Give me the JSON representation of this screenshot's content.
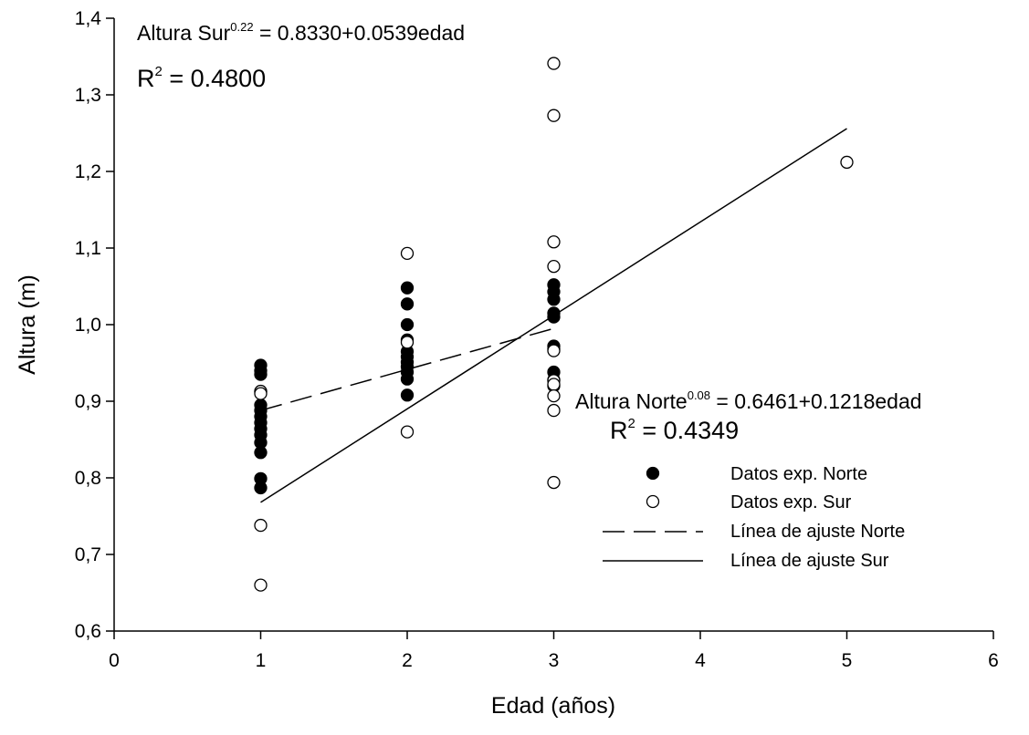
{
  "chart_data": {
    "type": "scatter",
    "xlabel": "Edad (años)",
    "ylabel": "Altura (m)",
    "xlim": [
      0,
      6
    ],
    "ylim": [
      0.6,
      1.4
    ],
    "x_ticks": [
      0,
      1,
      2,
      3,
      4,
      5,
      6
    ],
    "x_tick_labels": [
      "0",
      "1",
      "2",
      "3",
      "4",
      "5",
      "6"
    ],
    "y_ticks": [
      0.6,
      0.7,
      0.8,
      0.9,
      1.0,
      1.1,
      1.2,
      1.3,
      1.4
    ],
    "y_tick_labels": [
      "0,6",
      "0,7",
      "0,8",
      "0,9",
      "1,0",
      "1,1",
      "1,2",
      "1,3",
      "1,4"
    ],
    "grid": false,
    "legend_position": "bottom-right",
    "series": [
      {
        "name": "Datos exp. Norte",
        "kind": "points",
        "marker": "filled-circle",
        "points": [
          {
            "x": 1,
            "y": 0.947
          },
          {
            "x": 1,
            "y": 0.94
          },
          {
            "x": 1,
            "y": 0.935
          },
          {
            "x": 1,
            "y": 0.912
          },
          {
            "x": 1,
            "y": 0.895
          },
          {
            "x": 1,
            "y": 0.888
          },
          {
            "x": 1,
            "y": 0.88
          },
          {
            "x": 1,
            "y": 0.872
          },
          {
            "x": 1,
            "y": 0.864
          },
          {
            "x": 1,
            "y": 0.856
          },
          {
            "x": 1,
            "y": 0.846
          },
          {
            "x": 1,
            "y": 0.833
          },
          {
            "x": 1,
            "y": 0.799
          },
          {
            "x": 1,
            "y": 0.787
          },
          {
            "x": 2,
            "y": 1.048
          },
          {
            "x": 2,
            "y": 1.027
          },
          {
            "x": 2,
            "y": 1.0
          },
          {
            "x": 2,
            "y": 0.98
          },
          {
            "x": 2,
            "y": 0.965
          },
          {
            "x": 2,
            "y": 0.958
          },
          {
            "x": 2,
            "y": 0.951
          },
          {
            "x": 2,
            "y": 0.945
          },
          {
            "x": 2,
            "y": 0.938
          },
          {
            "x": 2,
            "y": 0.929
          },
          {
            "x": 2,
            "y": 0.908
          },
          {
            "x": 3,
            "y": 1.052
          },
          {
            "x": 3,
            "y": 1.043
          },
          {
            "x": 3,
            "y": 1.033
          },
          {
            "x": 3,
            "y": 1.015
          },
          {
            "x": 3,
            "y": 1.01
          },
          {
            "x": 3,
            "y": 0.972
          },
          {
            "x": 3,
            "y": 0.968
          },
          {
            "x": 3,
            "y": 0.938
          },
          {
            "x": 3,
            "y": 0.928
          },
          {
            "x": 3,
            "y": 0.92
          }
        ]
      },
      {
        "name": "Datos exp. Sur",
        "kind": "points",
        "marker": "open-circle",
        "points": [
          {
            "x": 1,
            "y": 0.913
          },
          {
            "x": 1,
            "y": 0.91
          },
          {
            "x": 1,
            "y": 0.738
          },
          {
            "x": 1,
            "y": 0.66
          },
          {
            "x": 2,
            "y": 1.093
          },
          {
            "x": 2,
            "y": 0.977
          },
          {
            "x": 2,
            "y": 0.86
          },
          {
            "x": 3,
            "y": 1.341
          },
          {
            "x": 3,
            "y": 1.273
          },
          {
            "x": 3,
            "y": 1.108
          },
          {
            "x": 3,
            "y": 1.076
          },
          {
            "x": 3,
            "y": 0.966
          },
          {
            "x": 3,
            "y": 0.927
          },
          {
            "x": 3,
            "y": 0.922
          },
          {
            "x": 3,
            "y": 0.907
          },
          {
            "x": 3,
            "y": 0.888
          },
          {
            "x": 3,
            "y": 0.794
          },
          {
            "x": 5,
            "y": 1.212
          }
        ]
      },
      {
        "name": "Línea de ajuste Norte",
        "kind": "line",
        "dash": "dashed",
        "points": [
          {
            "x": 1,
            "y": 0.888
          },
          {
            "x": 3,
            "y": 0.995
          }
        ]
      },
      {
        "name": "Línea de ajuste Sur",
        "kind": "line",
        "dash": "solid",
        "points": [
          {
            "x": 1,
            "y": 0.768
          },
          {
            "x": 5,
            "y": 1.256
          }
        ]
      }
    ],
    "annotations": [
      {
        "id": "eq-sur",
        "base": "Altura Sur",
        "exponent": "0.22",
        "rest": " = 0.8330+0.0539edad",
        "r2_base": "R",
        "r2_exp": "2",
        "r2_rest": " = 0.4800"
      },
      {
        "id": "eq-norte",
        "base": "Altura Norte",
        "exponent": "0.08",
        "rest": " = 0.6461+0.1218edad",
        "r2_base": "R",
        "r2_exp": "2",
        "r2_rest": " = 0.4349"
      }
    ],
    "colors": {
      "ink": "#000000",
      "background": "#ffffff"
    }
  }
}
